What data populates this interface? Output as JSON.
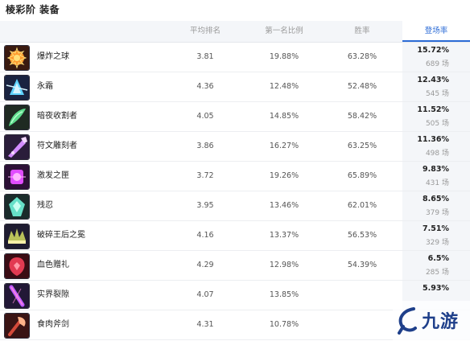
{
  "page": {
    "title": "棱彩阶 装备"
  },
  "table": {
    "headers": {
      "avg_rank": "平均排名",
      "first_rate": "第一名比例",
      "win_rate": "胜率",
      "pick_rate": "登场率"
    },
    "sorted_by": "pick_rate",
    "rows": [
      {
        "name": "爆炸之球",
        "icon": "explosive-orb-icon",
        "avg_rank": "3.81",
        "first_rate": "19.88%",
        "win_rate": "63.28%",
        "pick_rate": "15.72%",
        "games": "689 场"
      },
      {
        "name": "永霜",
        "icon": "everfrost-icon",
        "avg_rank": "4.36",
        "first_rate": "12.48%",
        "win_rate": "52.48%",
        "pick_rate": "12.43%",
        "games": "545 场"
      },
      {
        "name": "暗夜收割者",
        "icon": "night-harvester-icon",
        "avg_rank": "4.05",
        "first_rate": "14.85%",
        "win_rate": "58.42%",
        "pick_rate": "11.52%",
        "games": "505 场"
      },
      {
        "name": "符文雕刻者",
        "icon": "runecarver-icon",
        "avg_rank": "3.86",
        "first_rate": "16.27%",
        "win_rate": "63.25%",
        "pick_rate": "11.36%",
        "games": "498 场"
      },
      {
        "name": "激发之匣",
        "icon": "gambit-case-icon",
        "avg_rank": "3.72",
        "first_rate": "19.26%",
        "win_rate": "65.89%",
        "pick_rate": "9.83%",
        "games": "431 场"
      },
      {
        "name": "残忍",
        "icon": "cruelty-icon",
        "avg_rank": "3.95",
        "first_rate": "13.46%",
        "win_rate": "62.01%",
        "pick_rate": "8.65%",
        "games": "379 场"
      },
      {
        "name": "破碎王后之冕",
        "icon": "shattered-queen-crown-icon",
        "avg_rank": "4.16",
        "first_rate": "13.37%",
        "win_rate": "56.53%",
        "pick_rate": "7.51%",
        "games": "329 场"
      },
      {
        "name": "血色赠礼",
        "icon": "blood-gift-icon",
        "avg_rank": "4.29",
        "first_rate": "12.98%",
        "win_rate": "54.39%",
        "pick_rate": "6.5%",
        "games": "285 场"
      },
      {
        "name": "实界裂隙",
        "icon": "reality-fracture-icon",
        "avg_rank": "4.07",
        "first_rate": "13.85%",
        "win_rate": "",
        "pick_rate": "5.93%",
        "games": ""
      },
      {
        "name": "食肉斧剑",
        "icon": "carnivorous-axe-icon",
        "avg_rank": "4.31",
        "first_rate": "10.78%",
        "win_rate": "",
        "pick_rate": "",
        "games": ""
      }
    ]
  },
  "icon_colors": [
    {
      "bg": "#3a1a10",
      "fg": "#ff9a2e",
      "hi": "#ffe07a"
    },
    {
      "bg": "#1a2340",
      "fg": "#5fd3ff",
      "hi": "#d6f4ff"
    },
    {
      "bg": "#1f2a22",
      "fg": "#5edc8c",
      "hi": "#b8ffd0"
    },
    {
      "bg": "#2a1d3a",
      "fg": "#d38cff",
      "hi": "#f4d9ff"
    },
    {
      "bg": "#2c1036",
      "fg": "#e04dff",
      "hi": "#ffb6ff"
    },
    {
      "bg": "#1a2b2b",
      "fg": "#66e0c8",
      "hi": "#c9fff1"
    },
    {
      "bg": "#1e1c30",
      "fg": "#b9c25a",
      "hi": "#f6f0a8"
    },
    {
      "bg": "#3a0c14",
      "fg": "#e23a52",
      "hi": "#ff9aa8"
    },
    {
      "bg": "#221836",
      "fg": "#c05aff",
      "hi": "#ff8ad8"
    },
    {
      "bg": "#3a1414",
      "fg": "#d44a3a",
      "hi": "#ffb38a"
    }
  ],
  "watermark": {
    "text": "九游",
    "brand_color": "#1e3f8a"
  }
}
